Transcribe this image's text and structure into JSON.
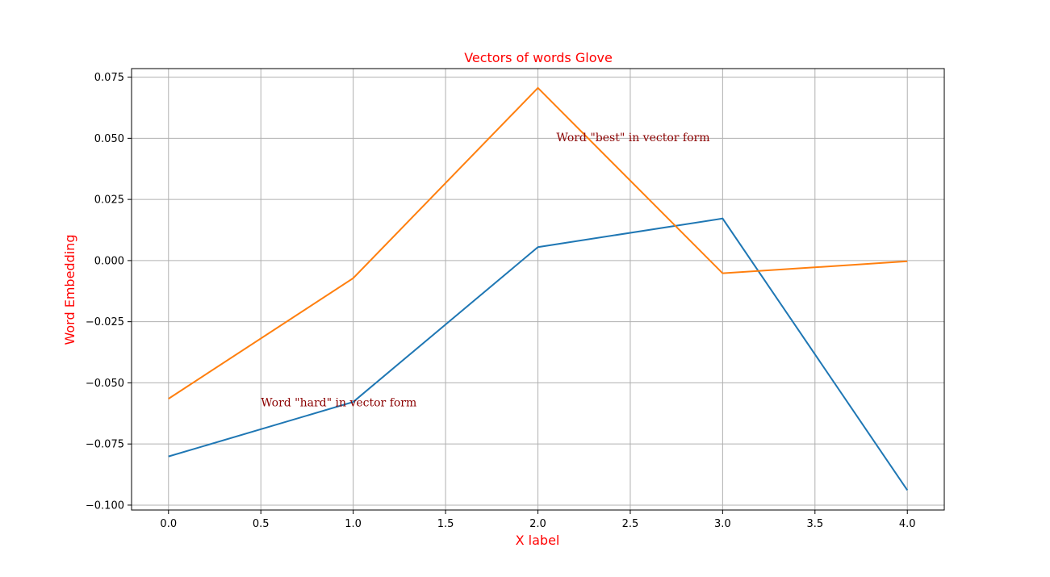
{
  "chart_data": {
    "type": "line",
    "title": "Vectors of words Glove",
    "xlabel": "X label",
    "ylabel": "Word Embedding",
    "x": [
      0,
      1,
      2,
      3,
      4
    ],
    "series": [
      {
        "values": [
          -0.0801,
          -0.0578,
          0.0055,
          0.0172,
          -0.0939
        ],
        "color": "#1f77b4"
      },
      {
        "values": [
          -0.0565,
          -0.0072,
          0.0706,
          -0.0052,
          -0.0003
        ],
        "color": "#ff7f0e"
      }
    ],
    "xlim": [
      -0.2,
      4.2
    ],
    "ylim": [
      -0.102,
      0.0785
    ],
    "x_ticks": [
      0.0,
      0.5,
      1.0,
      1.5,
      2.0,
      2.5,
      3.0,
      3.5,
      4.0
    ],
    "y_ticks": [
      -0.1,
      -0.075,
      -0.05,
      -0.025,
      0.0,
      0.025,
      0.05,
      0.075
    ],
    "x_tick_labels": [
      "0.0",
      "0.5",
      "1.0",
      "1.5",
      "2.0",
      "2.5",
      "3.0",
      "3.5",
      "4.0"
    ],
    "y_tick_labels": [
      "−0.100",
      "−0.075",
      "−0.050",
      "−0.025",
      "0.000",
      "0.025",
      "0.050",
      "0.075"
    ],
    "grid": true,
    "annotations": [
      {
        "text": "Word \"hard\" in vector form",
        "x": 0.5,
        "y": -0.058
      },
      {
        "text": "Word \"best\" in vector form",
        "x": 2.1,
        "y": 0.0505
      }
    ],
    "colors": {
      "title": "#ff0000",
      "axis_label": "#ff0000",
      "annotation": "#8b0000",
      "grid": "#b0b0b0"
    }
  }
}
